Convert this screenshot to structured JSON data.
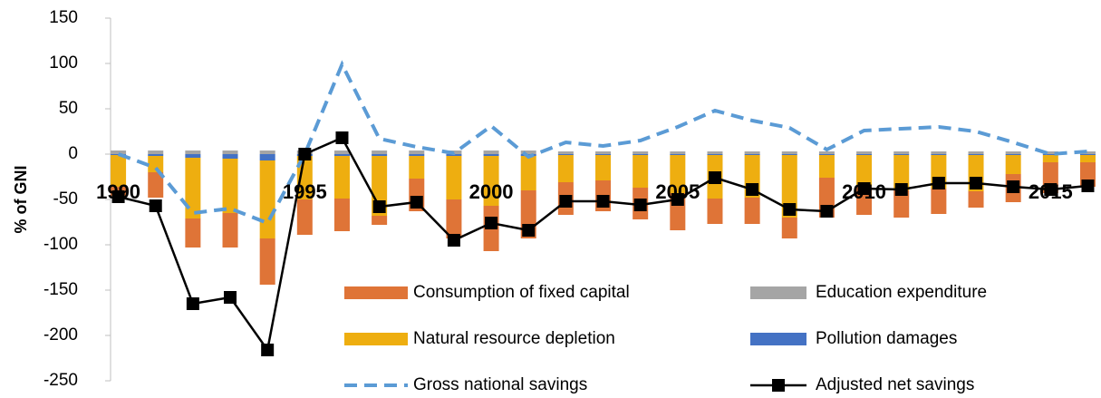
{
  "chart_data": {
    "type": "combo",
    "y_label": "% of GNI",
    "categories": [
      "1990",
      null,
      null,
      null,
      null,
      "1995",
      null,
      null,
      null,
      null,
      "2000",
      null,
      null,
      null,
      null,
      "2005",
      null,
      null,
      null,
      null,
      "2010",
      null,
      null,
      null,
      null,
      "2015",
      null
    ],
    "ylim": [
      -250,
      150
    ],
    "yticks": [
      -250,
      -200,
      -150,
      -100,
      -50,
      0,
      50,
      100,
      150
    ],
    "series": [
      {
        "name": "Consumption of fixed capital",
        "type": "bar",
        "color": "#DF7437",
        "values": [
          -10,
          -28,
          -32,
          -38,
          -51,
          -39,
          -36,
          -10,
          -36,
          -43,
          -50,
          -53,
          -36,
          -34,
          -35,
          -41,
          -28,
          -29,
          -23,
          -44,
          -32,
          -30,
          -28,
          -18,
          -31,
          -34,
          -27
        ]
      },
      {
        "name": "Education expenditure",
        "type": "bar",
        "color": "#A5A5A5",
        "values": [
          4,
          4,
          4,
          4,
          4,
          4,
          4,
          4,
          4,
          4,
          4,
          4,
          3,
          3,
          3,
          3,
          3,
          3,
          3,
          3,
          3,
          3,
          3,
          3,
          3,
          3,
          3
        ]
      },
      {
        "name": "Natural resource depletion",
        "type": "bar",
        "color": "#EEAE10",
        "values": [
          -35,
          -18,
          -67,
          -60,
          -86,
          -48,
          -47,
          -66,
          -25,
          -48,
          -55,
          -38,
          -30,
          -28,
          -36,
          -42,
          -48,
          -47,
          -69,
          -25,
          -34,
          -39,
          -37,
          -40,
          -21,
          -8,
          -8
        ]
      },
      {
        "name": "Pollution damages",
        "type": "bar",
        "color": "#4472C4",
        "values": [
          -1,
          -2,
          -4,
          -5,
          -7,
          -2,
          -2,
          -2,
          -2,
          -2,
          -2,
          -2,
          -1,
          -1,
          -1,
          -1,
          -1,
          -1,
          -1,
          -1,
          -1,
          -1,
          -1,
          -1,
          -1,
          -1,
          -1
        ]
      },
      {
        "name": "Gross national savings",
        "type": "line",
        "color": "#5B9BD5",
        "dashed": true,
        "values": [
          0,
          -15,
          -65,
          -60,
          -76,
          0,
          99,
          17,
          8,
          1,
          31,
          -3,
          13,
          9,
          15,
          30,
          48,
          37,
          29,
          5,
          26,
          28,
          30,
          25,
          13,
          0,
          3
        ]
      },
      {
        "name": "Adjusted net savings",
        "type": "line",
        "color": "#000000",
        "marker": "square",
        "values": [
          -47,
          -57,
          -165,
          -158,
          -216,
          0,
          18,
          -58,
          -53,
          -95,
          -76,
          -84,
          -52,
          -52,
          -56,
          -50,
          -26,
          -39,
          -61,
          -63,
          -38,
          -39,
          -32,
          -32,
          -36,
          -39,
          -35
        ]
      }
    ]
  }
}
